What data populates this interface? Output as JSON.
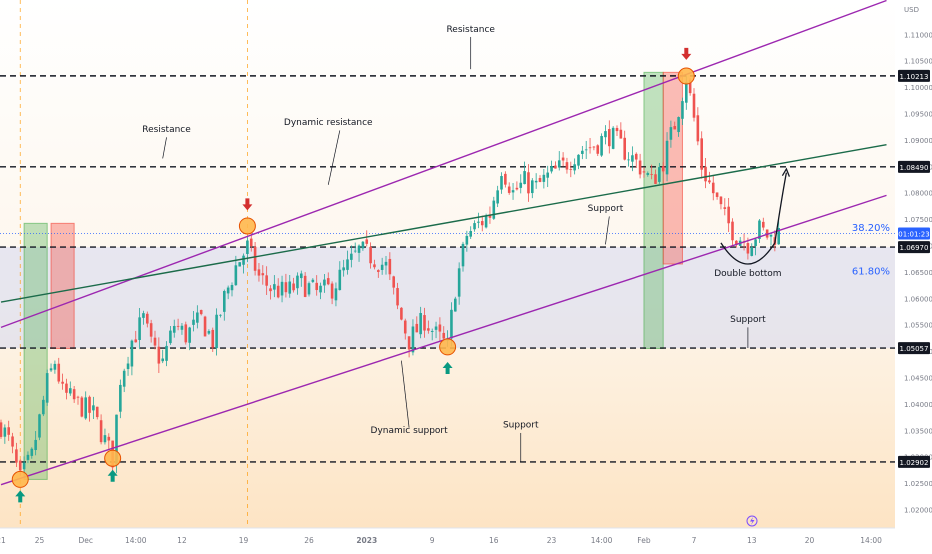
{
  "chart_data": {
    "type": "candlestick",
    "symbol_currency": "USD",
    "price_axis": {
      "range": [
        1.0165,
        1.1165
      ],
      "ticks": [
        1.02,
        1.025,
        1.03,
        1.035,
        1.04,
        1.045,
        1.05,
        1.055,
        1.06,
        1.065,
        1.07,
        1.075,
        1.08,
        1.085,
        1.09,
        1.095,
        1.1,
        1.105,
        1.11
      ],
      "tick_labels": [
        "1.02000",
        "1.02500",
        "1.03000",
        "1.03500",
        "1.04000",
        "1.04500",
        "1.05000",
        "1.05500",
        "1.06000",
        "1.06500",
        "1.07000",
        "1.07500",
        "1.08000",
        "1.08500",
        "1.09000",
        "1.09500",
        "1.10000",
        "1.10500",
        "1.11000"
      ]
    },
    "time_axis": {
      "labels": [
        "21",
        "25",
        "Dec",
        "14:00",
        "12",
        "19",
        "26",
        "2023",
        "9",
        "16",
        "23",
        "14:00",
        "Feb",
        "7",
        "13",
        "20",
        "14:00"
      ],
      "label_bars": [
        0,
        10,
        22,
        35,
        47,
        63,
        80,
        95,
        112,
        128,
        143,
        156,
        167,
        180,
        195,
        210,
        226
      ],
      "bar_count": 230
    },
    "candles": [],
    "price_levels": [
      {
        "value": 1.10213,
        "label": "1.10213",
        "style": "dashed"
      },
      {
        "value": 1.0849,
        "label": "1.08490",
        "style": "dashed"
      },
      {
        "value": 1.0697,
        "label": "1.06970",
        "style": "dashed"
      },
      {
        "value": 1.05057,
        "label": "1.05057",
        "style": "dashed"
      },
      {
        "value": 1.02902,
        "label": "1.02902",
        "style": "dashed"
      }
    ],
    "current_price": {
      "value": 1.07227,
      "countdown": "01:01:23",
      "color": "#2962ff"
    },
    "fibonacci": [
      {
        "label": "38.20%",
        "value": 1.0735
      },
      {
        "label": "61.80%",
        "value": 1.0653
      }
    ],
    "support_zone": {
      "from": 1.05057,
      "to": 1.0697,
      "color": "#d5d8f0"
    },
    "trendlines": [
      {
        "name": "upper-channel",
        "color": "#9c27b0",
        "points": [
          [
            0,
            1.0545
          ],
          [
            230,
            1.1164
          ]
        ]
      },
      {
        "name": "lower-channel",
        "color": "#9c27b0",
        "points": [
          [
            0,
            1.0247
          ],
          [
            230,
            1.0795
          ]
        ]
      },
      {
        "name": "dynamic-resistance",
        "color": "#1b6b4a",
        "points": [
          [
            0,
            1.0593
          ],
          [
            230,
            1.0891
          ]
        ]
      }
    ],
    "annotations": [
      {
        "text": "Resistance",
        "bar": 122,
        "price": 1.1104
      },
      {
        "text": "Resistance",
        "bar": 43,
        "price": 1.0915
      },
      {
        "text": "Dynamic resistance",
        "bar": 85,
        "price": 1.0928
      },
      {
        "text": "Support",
        "bar": 157,
        "price": 1.0765
      },
      {
        "text": "Double bottom",
        "bar": 194,
        "price": 1.0642
      },
      {
        "text": "Support",
        "bar": 194,
        "price": 1.0555
      },
      {
        "text": "Dynamic support",
        "bar": 106,
        "price": 1.0345
      },
      {
        "text": "Support",
        "bar": 135,
        "price": 1.0355
      }
    ],
    "highlights": [
      {
        "color": "#4caf50",
        "from_bar": 6,
        "to_bar": 12,
        "top": 1.0742,
        "bottom": 1.0257
      },
      {
        "color": "#f44336",
        "from_bar": 13,
        "to_bar": 19,
        "top": 1.0742,
        "bottom": 1.0505
      },
      {
        "color": "#4caf50",
        "from_bar": 167,
        "to_bar": 172,
        "top": 1.1028,
        "bottom": 1.0505
      },
      {
        "color": "#f44336",
        "from_bar": 172,
        "to_bar": 177,
        "top": 1.1028,
        "bottom": 1.0665
      }
    ],
    "markers": [
      {
        "type": "circle",
        "bar": 5,
        "price": 1.0257
      },
      {
        "type": "circle",
        "bar": 29,
        "price": 1.0297
      },
      {
        "type": "circle",
        "bar": 64,
        "price": 1.0737
      },
      {
        "type": "circle",
        "bar": 116,
        "price": 1.0508
      },
      {
        "type": "circle",
        "bar": 178,
        "price": 1.1021
      },
      {
        "type": "arrow-up",
        "bar": 5,
        "price": 1.0225
      },
      {
        "type": "arrow-up",
        "bar": 29,
        "price": 1.0264
      },
      {
        "type": "arrow-up",
        "bar": 116,
        "price": 1.0468
      },
      {
        "type": "arrow-down",
        "bar": 64,
        "price": 1.0778
      },
      {
        "type": "arrow-down",
        "bar": 178,
        "price": 1.1063
      }
    ]
  }
}
